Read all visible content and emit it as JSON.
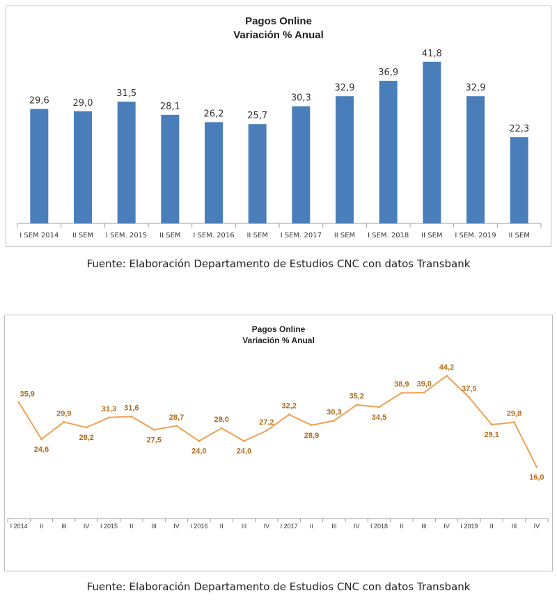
{
  "chart_data": [
    {
      "type": "bar",
      "title": "Pagos Online",
      "subtitle": "Variación % Anual",
      "categories": [
        "I SEM 2014",
        "II SEM",
        "I SEM. 2015",
        "II SEM",
        "I SEM. 2016",
        "II SEM",
        "I SEM. 2017",
        "II SEM",
        "I SEM. 2018",
        "II SEM",
        "I SEM. 2019",
        "II SEM"
      ],
      "values": [
        29.6,
        29.0,
        31.5,
        28.1,
        26.2,
        25.7,
        30.3,
        32.9,
        36.9,
        41.8,
        32.9,
        22.3
      ],
      "value_labels": [
        "29,6",
        "29,0",
        "31,5",
        "28,1",
        "26,2",
        "25,7",
        "30,3",
        "32,9",
        "36,9",
        "41,8",
        "32,9",
        "22,3"
      ],
      "ylim": [
        0,
        45
      ],
      "grid": false,
      "color": "#4a7ebb"
    },
    {
      "type": "line",
      "title": "Pagos Online",
      "subtitle": "Variación % Anual",
      "categories": [
        "I 2014",
        "II",
        "III",
        "IV",
        "I 2015",
        "II",
        "III",
        "IV",
        "I 2016",
        "II",
        "III",
        "IV",
        "I 2017",
        "II",
        "III",
        "IV",
        "I 2018",
        "II",
        "III",
        "IV",
        "I 2019",
        "II",
        "III",
        "IV"
      ],
      "values": [
        35.9,
        24.6,
        29.9,
        28.2,
        31.3,
        31.6,
        27.5,
        28.7,
        24.0,
        28.0,
        24.0,
        27.2,
        32.2,
        28.9,
        30.3,
        35.2,
        34.5,
        38.9,
        39.0,
        44.2,
        37.5,
        29.1,
        29.8,
        16.0
      ],
      "value_labels": [
        "35,9",
        "24,6",
        "29,9",
        "28,2",
        "31,3",
        "31,6",
        "27,5",
        "28,7",
        "24,0",
        "28,0",
        "24,0",
        "27,2",
        "32,2",
        "28,9",
        "30,3",
        "35,2",
        "34,5",
        "38,9",
        "39,0",
        "44,2",
        "37,5",
        "29,1",
        "29,8",
        "16,0"
      ],
      "ylim": [
        0,
        50
      ],
      "grid": false,
      "color": "#f0a050",
      "label_color": "#b36b1a"
    }
  ],
  "captions": [
    "Fuente: Elaboración Departamento de Estudios CNC con datos Transbank",
    "Fuente: Elaboración Departamento de Estudios CNC con datos Transbank"
  ]
}
